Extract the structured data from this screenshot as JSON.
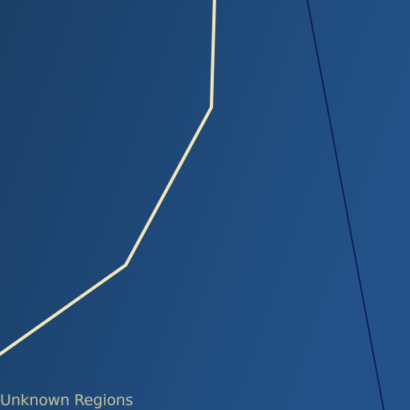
{
  "map": {
    "region_label": "Unknown Regions",
    "colors": {
      "background_dark": "#1b3f67",
      "background_light": "#225289",
      "hyperspace_route": "#f3e6b6",
      "boundary_line": "#0b1654",
      "label_text": "#c6c09c"
    }
  }
}
